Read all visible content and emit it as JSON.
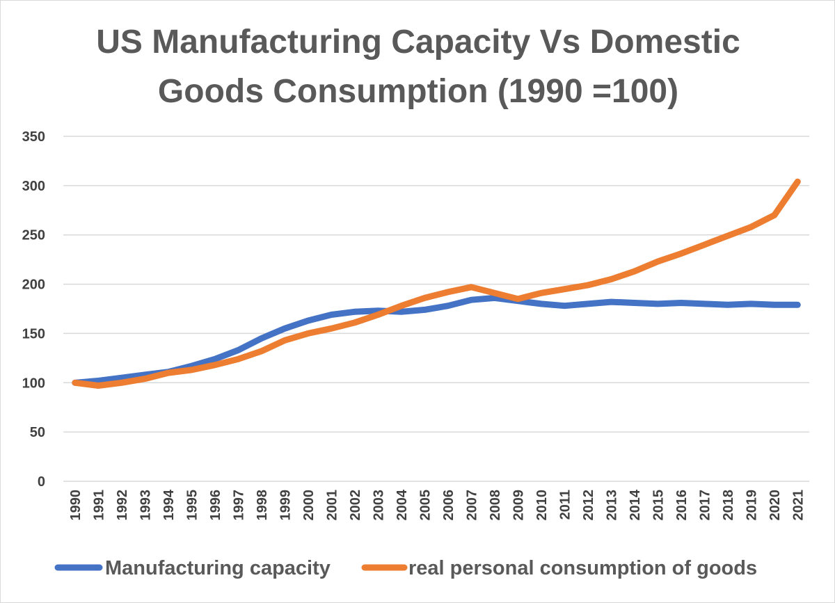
{
  "chart_data": {
    "type": "line",
    "title_line1": "US Manufacturing  Capacity Vs Domestic",
    "title_line2": "Goods Consumption (1990 =100)",
    "xlabel": "",
    "ylabel": "",
    "ylim": [
      0,
      350
    ],
    "yticks": [
      0,
      50,
      100,
      150,
      200,
      250,
      300,
      350
    ],
    "grid": true,
    "legend_position": "bottom",
    "categories": [
      "1990",
      "1991",
      "1992",
      "1993",
      "1994",
      "1995",
      "1996",
      "1997",
      "1998",
      "1999",
      "2000",
      "2001",
      "2002",
      "2003",
      "2004",
      "2005",
      "2006",
      "2007",
      "2008",
      "2009",
      "2010",
      "2011",
      "2012",
      "2013",
      "2014",
      "2015",
      "2016",
      "2017",
      "2018",
      "2019",
      "2020",
      "2021"
    ],
    "series": [
      {
        "name": "Manufacturing capacity",
        "color": "#4472c4",
        "values": [
          100,
          102,
          105,
          108,
          111,
          117,
          124,
          133,
          145,
          155,
          163,
          169,
          172,
          173,
          172,
          174,
          178,
          184,
          186,
          183,
          180,
          178,
          180,
          182,
          181,
          180,
          181,
          180,
          179,
          180,
          179,
          179
        ]
      },
      {
        "name": "real personal consumption of goods",
        "color": "#ed7d31",
        "values": [
          100,
          97,
          100,
          104,
          110,
          113,
          118,
          124,
          132,
          143,
          150,
          155,
          161,
          169,
          178,
          186,
          192,
          197,
          191,
          185,
          191,
          195,
          199,
          205,
          213,
          223,
          231,
          240,
          249,
          258,
          270,
          304
        ]
      }
    ]
  }
}
